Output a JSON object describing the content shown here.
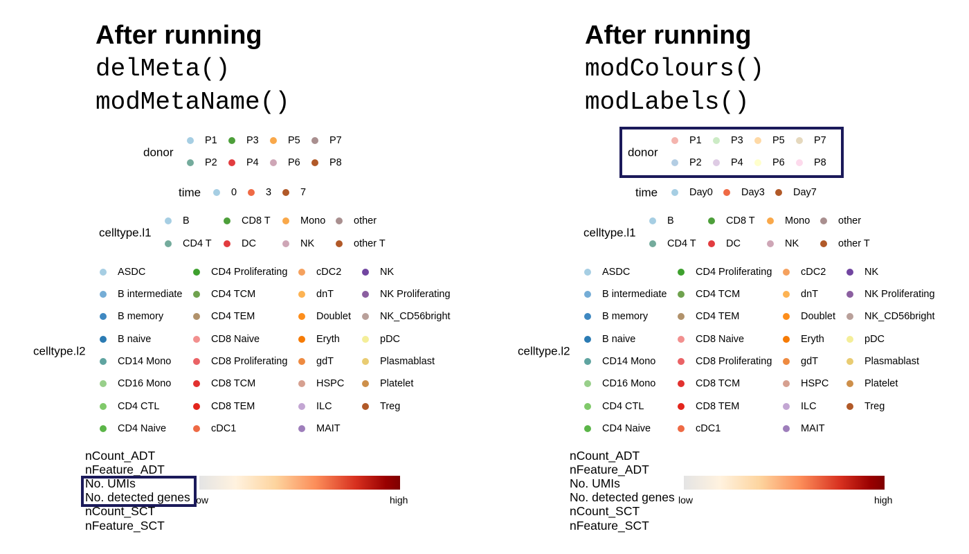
{
  "panels": [
    {
      "title": "After running",
      "code_lines": [
        "delMeta()",
        "modMetaName()"
      ],
      "donor": {
        "title": "donor",
        "items": [
          {
            "label": "P1",
            "color": "#a6cee3"
          },
          {
            "label": "P2",
            "color": "#74ab9c"
          },
          {
            "label": "P3",
            "color": "#4d9f3a"
          },
          {
            "label": "P4",
            "color": "#e23c3f"
          },
          {
            "label": "P5",
            "color": "#f9a84a"
          },
          {
            "label": "P6",
            "color": "#cea6b6"
          },
          {
            "label": "P7",
            "color": "#a98f8f"
          },
          {
            "label": "P8",
            "color": "#b15928"
          }
        ]
      },
      "time": {
        "title": "time",
        "items": [
          {
            "label": "0",
            "color": "#a6cee3"
          },
          {
            "label": "3",
            "color": "#ef6a45"
          },
          {
            "label": "7",
            "color": "#b15928"
          }
        ]
      },
      "celltype_l1": {
        "title": "celltype.l1",
        "items": [
          {
            "label": "B",
            "color": "#a6cee3"
          },
          {
            "label": "CD4 T",
            "color": "#74ab9c"
          },
          {
            "label": "CD8 T",
            "color": "#4d9f3a"
          },
          {
            "label": "DC",
            "color": "#e23c3f"
          },
          {
            "label": "Mono",
            "color": "#f9a84a"
          },
          {
            "label": "NK",
            "color": "#cea6b6"
          },
          {
            "label": "other",
            "color": "#a98f8f"
          },
          {
            "label": "other T",
            "color": "#b15928"
          }
        ]
      },
      "celltype_l2": {
        "title": "celltype.l2",
        "items": [
          {
            "label": "ASDC",
            "color": "#a6cee3"
          },
          {
            "label": "B intermediate",
            "color": "#75add6"
          },
          {
            "label": "B memory",
            "color": "#3f88c1"
          },
          {
            "label": "B naive",
            "color": "#2b7bb3"
          },
          {
            "label": "CD14 Mono",
            "color": "#5fa4a0"
          },
          {
            "label": "CD16 Mono",
            "color": "#98cf8a"
          },
          {
            "label": "CD4 CTL",
            "color": "#80c96a"
          },
          {
            "label": "CD4 Naive",
            "color": "#5bb548"
          },
          {
            "label": "CD4 Proliferating",
            "color": "#3ea02e"
          },
          {
            "label": "CD4 TCM",
            "color": "#6fa24e"
          },
          {
            "label": "CD4 TEM",
            "color": "#b1926b"
          },
          {
            "label": "CD8 Naive",
            "color": "#f2908f"
          },
          {
            "label": "CD8 Proliferating",
            "color": "#ea6265"
          },
          {
            "label": "CD8 TCM",
            "color": "#e2312f"
          },
          {
            "label": "CD8 TEM",
            "color": "#e3251c"
          },
          {
            "label": "cDC1",
            "color": "#ee6a45"
          },
          {
            "label": "cDC2",
            "color": "#f5a15e"
          },
          {
            "label": "dnT",
            "color": "#fdb353"
          },
          {
            "label": "Doublet",
            "color": "#fd8e1c"
          },
          {
            "label": "Eryth",
            "color": "#f67b05"
          },
          {
            "label": "gdT",
            "color": "#ee8a40"
          },
          {
            "label": "HSPC",
            "color": "#d6a090"
          },
          {
            "label": "ILC",
            "color": "#c3a6d3"
          },
          {
            "label": "MAIT",
            "color": "#9e7ebb"
          },
          {
            "label": "NK",
            "color": "#7145a0"
          },
          {
            "label": "NK Proliferating",
            "color": "#8b5fa0"
          },
          {
            "label": "NK_CD56bright",
            "color": "#b9a09a"
          },
          {
            "label": "pDC",
            "color": "#f4ee99"
          },
          {
            "label": "Plasmablast",
            "color": "#e9cc72"
          },
          {
            "label": "Platelet",
            "color": "#cd8f4a"
          },
          {
            "label": "Treg",
            "color": "#b15928"
          }
        ]
      },
      "continuous": {
        "labels": [
          "nCount_ADT",
          "nFeature_ADT",
          "No. UMIs",
          "No. detected genes",
          "nCount_SCT",
          "nFeature_SCT"
        ],
        "low_label": "low",
        "high_label": "high"
      }
    },
    {
      "title": "After running",
      "code_lines": [
        "modColours()",
        "modLabels()"
      ],
      "donor": {
        "title": "donor",
        "items": [
          {
            "label": "P1",
            "color": "#f4b4ae"
          },
          {
            "label": "P2",
            "color": "#b3cde3"
          },
          {
            "label": "P3",
            "color": "#ccebc5"
          },
          {
            "label": "P4",
            "color": "#decbe4"
          },
          {
            "label": "P5",
            "color": "#fed9a6"
          },
          {
            "label": "P6",
            "color": "#ffffcc"
          },
          {
            "label": "P7",
            "color": "#e5d8bd"
          },
          {
            "label": "P8",
            "color": "#fddaec"
          }
        ]
      },
      "time": {
        "title": "time",
        "items": [
          {
            "label": "Day0",
            "color": "#a6cee3"
          },
          {
            "label": "Day3",
            "color": "#ef6a45"
          },
          {
            "label": "Day7",
            "color": "#b15928"
          }
        ]
      },
      "celltype_l1": {
        "title": "celltype.l1",
        "items": [
          {
            "label": "B",
            "color": "#a6cee3"
          },
          {
            "label": "CD4 T",
            "color": "#74ab9c"
          },
          {
            "label": "CD8 T",
            "color": "#4d9f3a"
          },
          {
            "label": "DC",
            "color": "#e23c3f"
          },
          {
            "label": "Mono",
            "color": "#f9a84a"
          },
          {
            "label": "NK",
            "color": "#cea6b6"
          },
          {
            "label": "other",
            "color": "#a98f8f"
          },
          {
            "label": "other T",
            "color": "#b15928"
          }
        ]
      },
      "celltype_l2": {
        "title": "celltype.l2",
        "items": [
          {
            "label": "ASDC",
            "color": "#a6cee3"
          },
          {
            "label": "B intermediate",
            "color": "#75add6"
          },
          {
            "label": "B memory",
            "color": "#3f88c1"
          },
          {
            "label": "B naive",
            "color": "#2b7bb3"
          },
          {
            "label": "CD14 Mono",
            "color": "#5fa4a0"
          },
          {
            "label": "CD16 Mono",
            "color": "#98cf8a"
          },
          {
            "label": "CD4 CTL",
            "color": "#80c96a"
          },
          {
            "label": "CD4 Naive",
            "color": "#5bb548"
          },
          {
            "label": "CD4 Proliferating",
            "color": "#3ea02e"
          },
          {
            "label": "CD4 TCM",
            "color": "#6fa24e"
          },
          {
            "label": "CD4 TEM",
            "color": "#b1926b"
          },
          {
            "label": "CD8 Naive",
            "color": "#f2908f"
          },
          {
            "label": "CD8 Proliferating",
            "color": "#ea6265"
          },
          {
            "label": "CD8 TCM",
            "color": "#e2312f"
          },
          {
            "label": "CD8 TEM",
            "color": "#e3251c"
          },
          {
            "label": "cDC1",
            "color": "#ee6a45"
          },
          {
            "label": "cDC2",
            "color": "#f5a15e"
          },
          {
            "label": "dnT",
            "color": "#fdb353"
          },
          {
            "label": "Doublet",
            "color": "#fd8e1c"
          },
          {
            "label": "Eryth",
            "color": "#f67b05"
          },
          {
            "label": "gdT",
            "color": "#ee8a40"
          },
          {
            "label": "HSPC",
            "color": "#d6a090"
          },
          {
            "label": "ILC",
            "color": "#c3a6d3"
          },
          {
            "label": "MAIT",
            "color": "#9e7ebb"
          },
          {
            "label": "NK",
            "color": "#7145a0"
          },
          {
            "label": "NK Proliferating",
            "color": "#8b5fa0"
          },
          {
            "label": "NK_CD56bright",
            "color": "#b9a09a"
          },
          {
            "label": "pDC",
            "color": "#f4ee99"
          },
          {
            "label": "Plasmablast",
            "color": "#e9cc72"
          },
          {
            "label": "Platelet",
            "color": "#cd8f4a"
          },
          {
            "label": "Treg",
            "color": "#b15928"
          }
        ]
      },
      "continuous": {
        "labels": [
          "nCount_ADT",
          "nFeature_ADT",
          "No. UMIs",
          "No. detected genes",
          "nCount_SCT",
          "nFeature_SCT"
        ],
        "low_label": "low",
        "high_label": "high"
      }
    }
  ],
  "highlight_color": "#1b1a5a"
}
